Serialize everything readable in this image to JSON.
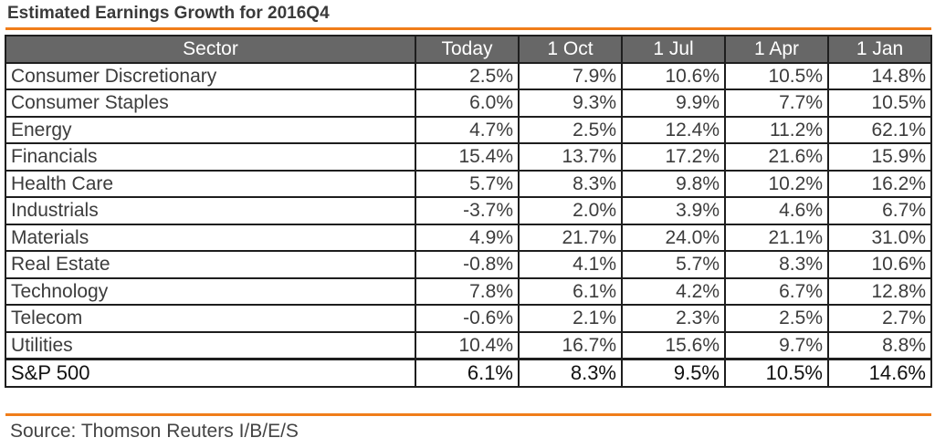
{
  "title": "Estimated Earnings Growth for  2016Q4",
  "table": {
    "headers": [
      "Sector",
      "Today",
      "1 Oct",
      "1 Jul",
      "1 Apr",
      "1 Jan"
    ],
    "rows": [
      [
        "Consumer Discretionary",
        "2.5%",
        "7.9%",
        "10.6%",
        "10.5%",
        "14.8%"
      ],
      [
        "Consumer Staples",
        "6.0%",
        "9.3%",
        "9.9%",
        "7.7%",
        "10.5%"
      ],
      [
        "Energy",
        "4.7%",
        "2.5%",
        "12.4%",
        "11.2%",
        "62.1%"
      ],
      [
        "Financials",
        "15.4%",
        "13.7%",
        "17.2%",
        "21.6%",
        "15.9%"
      ],
      [
        "Health Care",
        "5.7%",
        "8.3%",
        "9.8%",
        "10.2%",
        "16.2%"
      ],
      [
        "Industrials",
        "-3.7%",
        "2.0%",
        "3.9%",
        "4.6%",
        "6.7%"
      ],
      [
        "Materials",
        "4.9%",
        "21.7%",
        "24.0%",
        "21.1%",
        "31.0%"
      ],
      [
        "Real Estate",
        "-0.8%",
        "4.1%",
        "5.7%",
        "8.3%",
        "10.6%"
      ],
      [
        "Technology",
        "7.8%",
        "6.1%",
        "4.2%",
        "6.7%",
        "12.8%"
      ],
      [
        "Telecom",
        "-0.6%",
        "2.1%",
        "2.3%",
        "2.5%",
        "2.7%"
      ],
      [
        "Utilities",
        "10.4%",
        "16.7%",
        "15.6%",
        "9.7%",
        "8.8%"
      ]
    ],
    "total": [
      "S&P 500",
      "6.1%",
      "8.3%",
      "9.5%",
      "10.5%",
      "14.6%"
    ]
  },
  "source": "Source: Thomson Reuters I/B/E/S",
  "colors": {
    "accent_rule": "#f07d1a",
    "header_bg": "#676767",
    "header_text": "#ffffff",
    "border": "#1e1e1e"
  }
}
